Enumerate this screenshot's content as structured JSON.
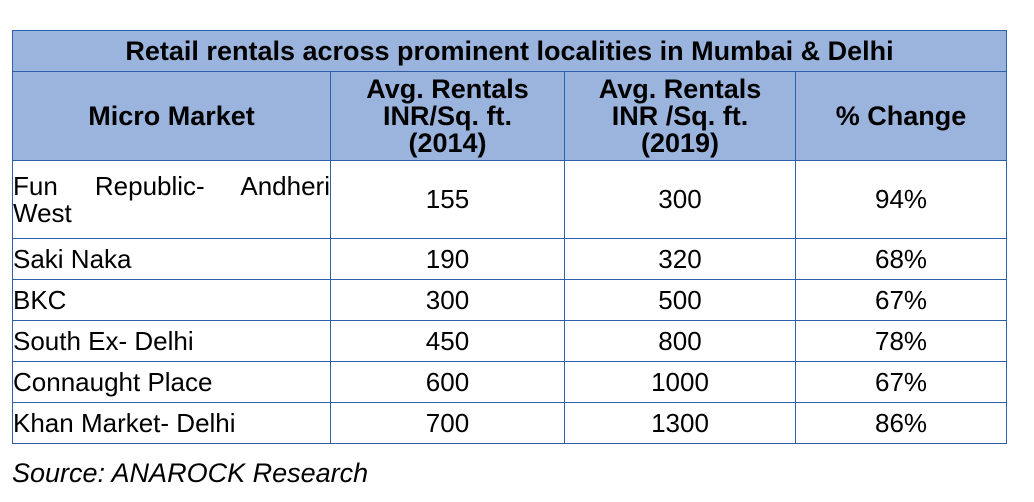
{
  "table": {
    "title": "Retail rentals across prominent localities in Mumbai & Delhi",
    "headers": {
      "micro_market": "Micro Market",
      "rent_2014": [
        "Avg. Rentals",
        "INR/Sq. ft.",
        "(2014)"
      ],
      "rent_2019": [
        "Avg. Rentals",
        "INR /Sq. ft.",
        "(2019)"
      ],
      "change": "% Change"
    },
    "rows": [
      {
        "market": "Fun Republic- Andheri West",
        "rent_2014": "155",
        "rent_2019": "300",
        "change": "94%"
      },
      {
        "market": "Saki Naka",
        "rent_2014": "190",
        "rent_2019": "320",
        "change": "68%"
      },
      {
        "market": "BKC",
        "rent_2014": "300",
        "rent_2019": "500",
        "change": "67%"
      },
      {
        "market": "South Ex- Delhi",
        "rent_2014": "450",
        "rent_2019": "800",
        "change": "78%"
      },
      {
        "market": "Connaught Place",
        "rent_2014": "600",
        "rent_2019": "1000",
        "change": "67%"
      },
      {
        "market": "Khan Market- Delhi",
        "rent_2014": "700",
        "rent_2019": "1300",
        "change": "86%"
      }
    ]
  },
  "source": "Source: ANAROCK Research",
  "colors": {
    "header_fill": "#9bb4dd",
    "border": "#2f5fa8"
  }
}
